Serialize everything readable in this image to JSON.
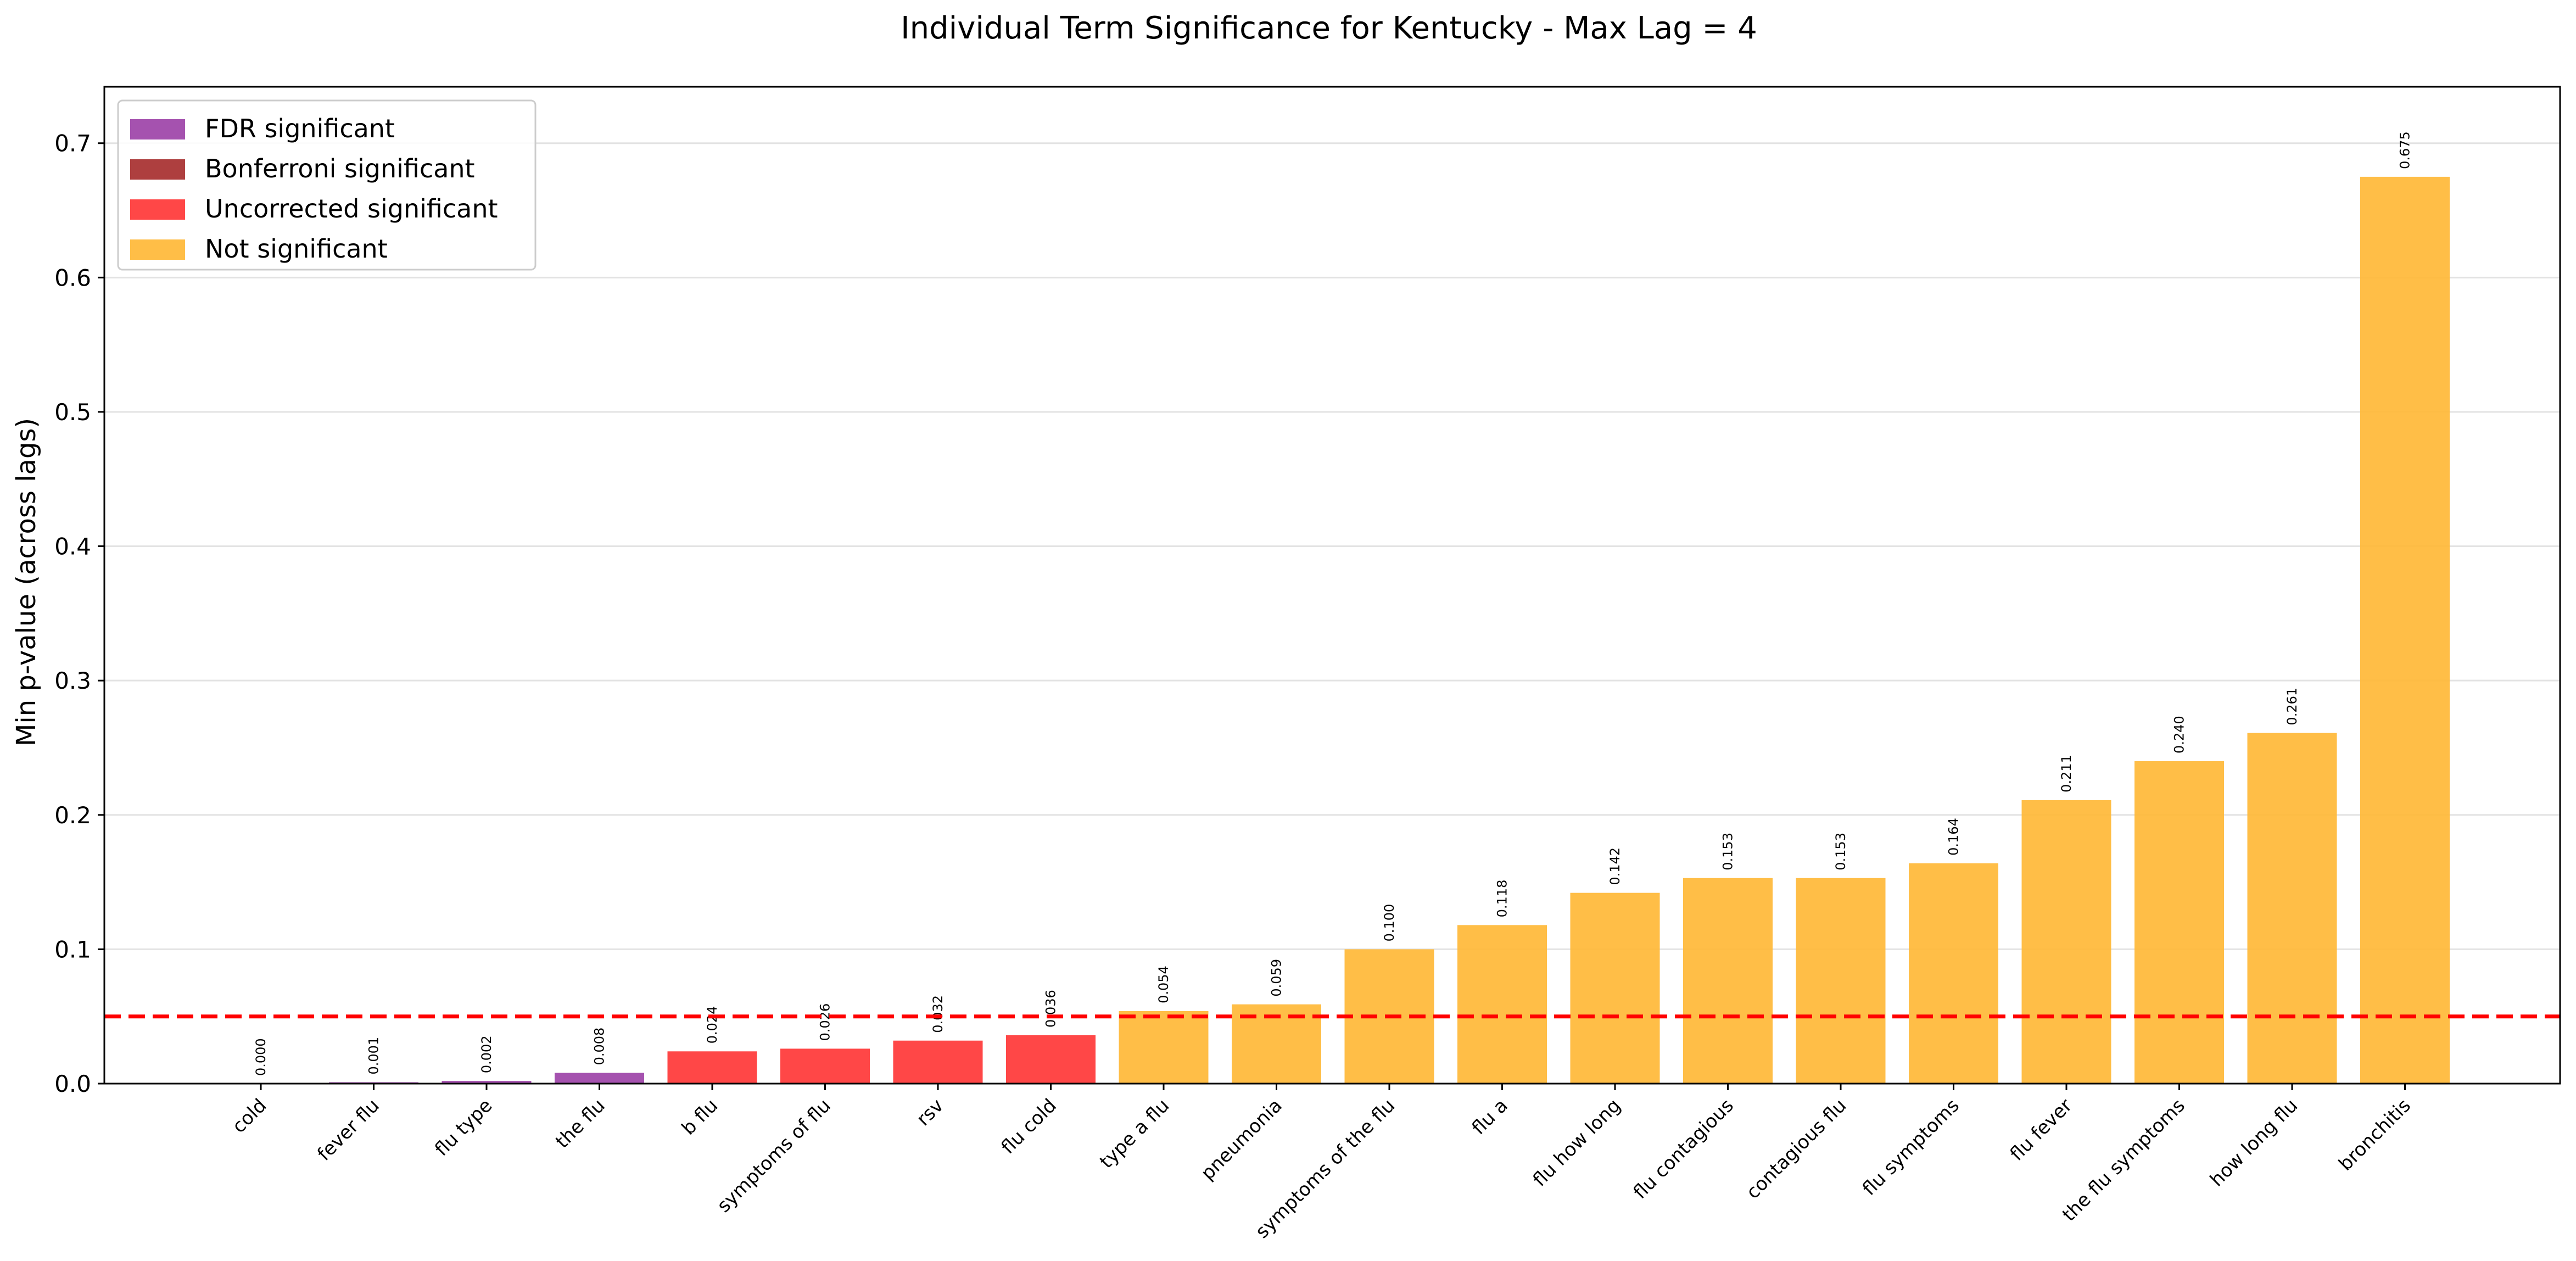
{
  "chart_data": {
    "type": "bar",
    "title": "Individual Term Significance for Kentucky - Max Lag = 4",
    "xlabel": "",
    "ylabel": "Min p-value (across lags)",
    "ylim": [
      0,
      0.742
    ],
    "yticks": [
      0.0,
      0.1,
      0.2,
      0.3,
      0.4,
      0.5,
      0.6,
      0.7
    ],
    "ytick_labels": [
      "0.0",
      "0.1",
      "0.2",
      "0.3",
      "0.4",
      "0.5",
      "0.6",
      "0.7"
    ],
    "grid": "horizontal",
    "threshold": 0.05,
    "threshold_color": "#ff0000",
    "legend_position": "top-left",
    "legend": [
      {
        "label": "FDR significant",
        "color": "#9b3fa6"
      },
      {
        "label": "Bonferroni significant",
        "color": "#a52a2a"
      },
      {
        "label": "Uncorrected significant",
        "color": "#ff3333"
      },
      {
        "label": "Not significant",
        "color": "#ffb733"
      }
    ],
    "categories": [
      "cold",
      "fever flu",
      "flu type",
      "the flu",
      "b flu",
      "symptoms of flu",
      "rsv",
      "flu cold",
      "type a flu",
      "pneumonia",
      "symptoms of the flu",
      "flu a",
      "flu how long",
      "flu contagious",
      "contagious flu",
      "flu symptoms",
      "flu fever",
      "the flu symptoms",
      "how long flu",
      "bronchitis"
    ],
    "values": [
      0.0,
      0.001,
      0.002,
      0.008,
      0.024,
      0.026,
      0.032,
      0.036,
      0.054,
      0.059,
      0.1,
      0.118,
      0.142,
      0.153,
      0.153,
      0.164,
      0.211,
      0.24,
      0.261,
      0.675
    ],
    "value_labels": [
      "0.000",
      "0.001",
      "0.002",
      "0.008",
      "0.024",
      "0.026",
      "0.032",
      "0.036",
      "0.054",
      "0.059",
      "0.100",
      "0.118",
      "0.142",
      "0.153",
      "0.153",
      "0.164",
      "0.211",
      "0.240",
      "0.261",
      "0.675"
    ],
    "significance": [
      "FDR",
      "FDR",
      "FDR",
      "FDR",
      "Uncorrected",
      "Uncorrected",
      "Uncorrected",
      "Uncorrected",
      "Not",
      "Not",
      "Not",
      "Not",
      "Not",
      "Not",
      "Not",
      "Not",
      "Not",
      "Not",
      "Not",
      "Not"
    ],
    "colors": {
      "FDR": "#9b3fa6",
      "Bonferroni": "#a52a2a",
      "Uncorrected": "#ff3333",
      "Not": "#ffb733"
    }
  }
}
